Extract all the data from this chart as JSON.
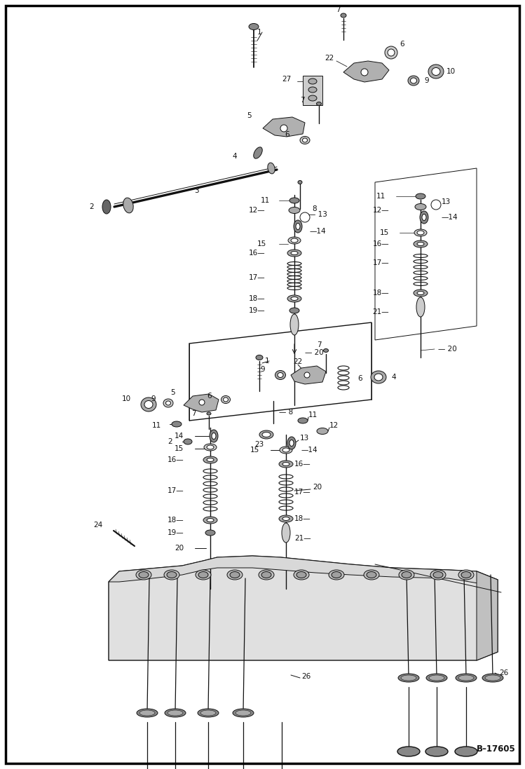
{
  "bg": "#f0f0f0",
  "fg": "#111111",
  "border": "#000000",
  "ref_code": "B-17605",
  "figsize": [
    7.49,
    10.97
  ],
  "dpi": 100
}
